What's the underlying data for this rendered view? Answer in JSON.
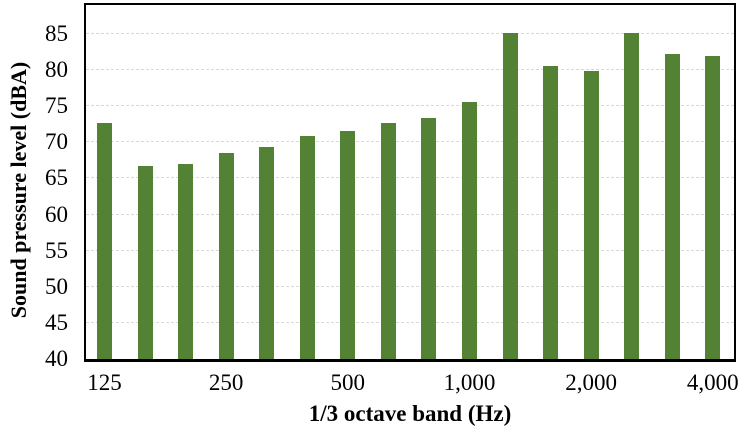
{
  "chart_data": {
    "type": "bar",
    "title": "",
    "xlabel": "1/3 octave band (Hz)",
    "ylabel": "Sound pressure level (dBA)",
    "bar_count": 16,
    "values": [
      72.6,
      66.7,
      67.0,
      68.5,
      69.4,
      70.9,
      71.6,
      72.6,
      73.3,
      75.6,
      85.1,
      80.5,
      79.9,
      85.1,
      82.2,
      81.9
    ],
    "x_ticks": [
      {
        "index": 0,
        "label": "125"
      },
      {
        "index": 3,
        "label": "250"
      },
      {
        "index": 6,
        "label": "500"
      },
      {
        "index": 9,
        "label": "1,000"
      },
      {
        "index": 12,
        "label": "2,000"
      },
      {
        "index": 15,
        "label": "4,000"
      }
    ],
    "y_ticks": [
      40,
      45,
      50,
      55,
      60,
      65,
      70,
      75,
      80,
      85
    ],
    "ylim": [
      40,
      89
    ],
    "grid": "horizontal-dashed",
    "legend": "none",
    "bar_color": "#548235",
    "gridline_color": "#d9d9d9",
    "axis_color": "#000000",
    "background_color": "#ffffff"
  }
}
